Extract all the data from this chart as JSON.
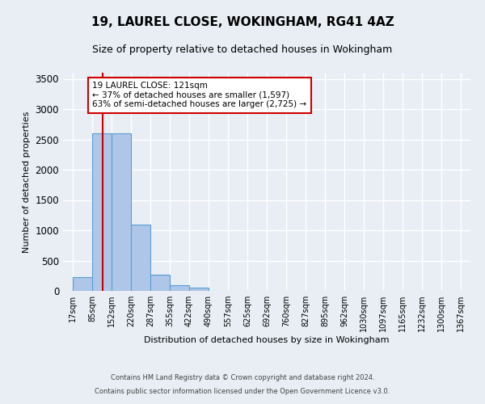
{
  "title1": "19, LAUREL CLOSE, WOKINGHAM, RG41 4AZ",
  "title2": "Size of property relative to detached houses in Wokingham",
  "xlabel": "Distribution of detached houses by size in Wokingham",
  "ylabel": "Number of detached properties",
  "bin_labels": [
    "17sqm",
    "85sqm",
    "152sqm",
    "220sqm",
    "287sqm",
    "355sqm",
    "422sqm",
    "490sqm",
    "557sqm",
    "625sqm",
    "692sqm",
    "760sqm",
    "827sqm",
    "895sqm",
    "962sqm",
    "1030sqm",
    "1097sqm",
    "1165sqm",
    "1232sqm",
    "1300sqm",
    "1367sqm"
  ],
  "bar_values": [
    230,
    2600,
    2600,
    1100,
    270,
    90,
    50,
    0,
    0,
    0,
    0,
    0,
    0,
    0,
    0,
    0,
    0,
    0,
    0,
    0
  ],
  "bar_color": "#aec6e8",
  "bar_edge_color": "#5a9fd4",
  "vline_color": "#cc0000",
  "property_line_label": "19 LAUREL CLOSE: 121sqm",
  "annotation_line1": "← 37% of detached houses are smaller (1,597)",
  "annotation_line2": "63% of semi-detached houses are larger (2,725) →",
  "annotation_box_color": "#ffffff",
  "annotation_box_edge_color": "#cc0000",
  "ylim": [
    0,
    3600
  ],
  "footer1": "Contains HM Land Registry data © Crown copyright and database right 2024.",
  "footer2": "Contains public sector information licensed under the Open Government Licence v3.0.",
  "background_color": "#e8eef4",
  "grid_color": "#ffffff",
  "title1_fontsize": 11,
  "title2_fontsize": 9,
  "tick_fontsize": 7,
  "ylabel_fontsize": 8,
  "xlabel_fontsize": 8,
  "footer_fontsize": 6
}
